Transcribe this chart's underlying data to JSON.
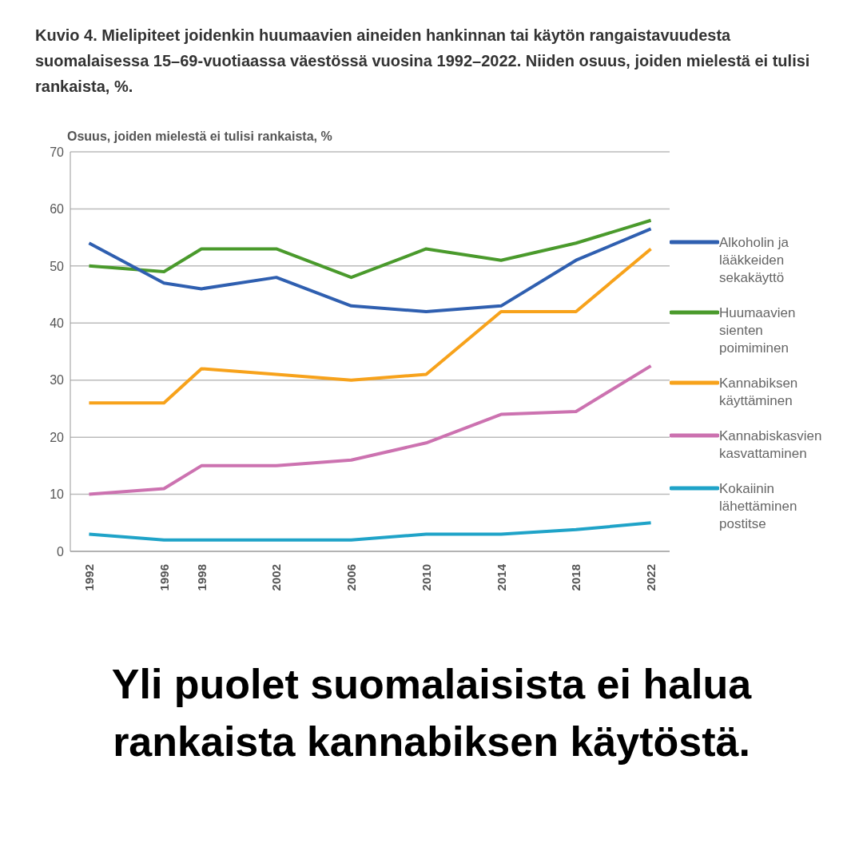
{
  "chart_data": {
    "type": "line",
    "title": "Kuvio 4. Mielipiteet joidenkin huumaavien aineiden hankinnan tai käytön rangaistavuudesta suomalaisessa 15–69-vuotiaassa väestössä vuosina 1992–2022. Niiden osuus, joiden mielestä ei tulisi rankaista, %.",
    "ylabel": "Osuus, joiden mielestä ei tulisi rankaista, %",
    "annotations": [
      "Yli puolet suomalaisista ei halua rankaista kannabiksen käytöstä."
    ],
    "x": [
      1992,
      1996,
      1998,
      2002,
      2006,
      2010,
      2014,
      2018,
      2022
    ],
    "xlim": [
      1991,
      2023
    ],
    "xticks": [
      1992,
      1996,
      1998,
      2002,
      2006,
      2010,
      2014,
      2018,
      2022
    ],
    "ylim": [
      0,
      70
    ],
    "yticks": [
      0,
      10,
      20,
      30,
      40,
      50,
      60,
      70
    ],
    "grid": "y",
    "legend": "right",
    "marker": "none",
    "line_style": "solid",
    "series": [
      {
        "name": "Huumaavien sienten poimiminen",
        "color": "#4a9a2c",
        "values": [
          50,
          49,
          53,
          53,
          48,
          53,
          51,
          54,
          58
        ]
      },
      {
        "name": "Alkoholin ja lääkkeiden sekakäyttö",
        "color": "#2f5fb0",
        "values": [
          54,
          47,
          46,
          48,
          43,
          42,
          43,
          51,
          56.5
        ]
      },
      {
        "name": "Kannabiksen käyttäminen",
        "color": "#f7a21b",
        "values": [
          26,
          26,
          32,
          31,
          30,
          31,
          42,
          42,
          53
        ]
      },
      {
        "name": "Kannabiskasvien kasvattaminen",
        "color": "#cc72b0",
        "values": [
          10,
          11,
          15,
          15,
          16,
          19,
          24,
          24.5,
          32.5
        ]
      },
      {
        "name": "Kokaiinin lähettäminen postitse",
        "color": "#1fa3c8",
        "values": [
          3,
          2,
          2,
          2,
          2,
          3,
          3,
          3.8,
          5
        ]
      }
    ]
  }
}
